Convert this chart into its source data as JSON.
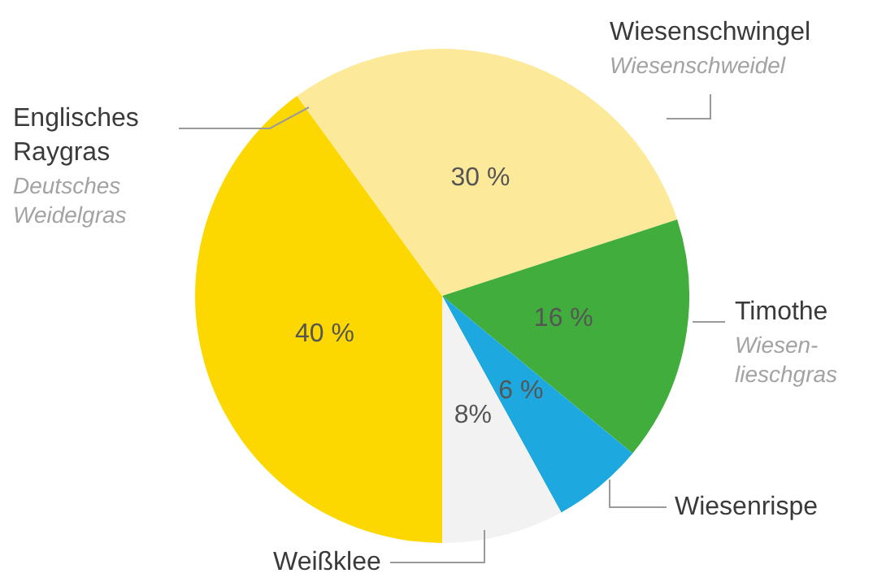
{
  "chart_data": {
    "type": "pie",
    "categories": [
      "Englisches Raygras",
      "Wiesenschwingel",
      "Timothe",
      "Wiesenrispe",
      "Weißklee"
    ],
    "values": [
      40,
      30,
      16,
      6,
      8
    ],
    "colors": [
      "#fcd800",
      "#fde99a",
      "#40ad3c",
      "#1ea8e0",
      "#f2f2f2"
    ],
    "value_labels": [
      "40 %",
      "30 %",
      "16 %",
      "6 %",
      "8%"
    ],
    "annotations": [
      "Deutsches Weidelgras",
      "Wiesenschweidel",
      "Wiesen-lieschgras"
    ],
    "legend": false
  }
}
